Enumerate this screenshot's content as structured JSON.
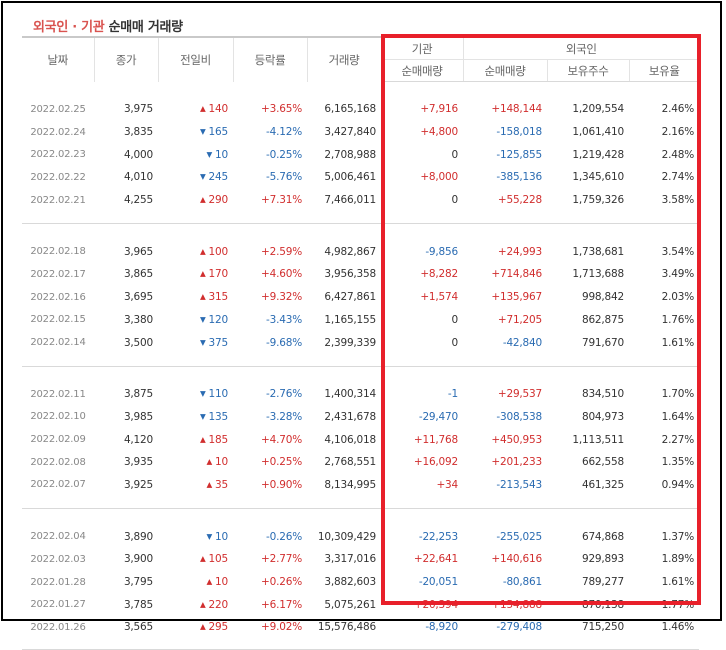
{
  "title": {
    "highlight": "외국인 · 기관",
    "rest": " 순매매 거래량"
  },
  "colors": {
    "up": "#d12e2e",
    "down": "#2a6bb2",
    "box": "#e8202a"
  },
  "headers": {
    "date": "날짜",
    "close": "종가",
    "change": "전일비",
    "rate": "등락률",
    "volume": "거래량",
    "inst_group": "기관",
    "foreign_group": "외국인",
    "inst_net": "순매매량",
    "foreign_net": "순매매량",
    "foreign_hold": "보유주수",
    "foreign_ratio": "보유율"
  },
  "groups": [
    [
      {
        "date": "2022.02.25",
        "close": "3,975",
        "dir": "up",
        "change": "140",
        "rate": "+3.65%",
        "volume": "6,165,168",
        "inst": "+7,916",
        "foreign": "+148,144",
        "hold": "1,209,554",
        "ratio": "2.46%"
      },
      {
        "date": "2022.02.24",
        "close": "3,835",
        "dir": "down",
        "change": "165",
        "rate": "-4.12%",
        "volume": "3,427,840",
        "inst": "+4,800",
        "foreign": "-158,018",
        "hold": "1,061,410",
        "ratio": "2.16%"
      },
      {
        "date": "2022.02.23",
        "close": "4,000",
        "dir": "down",
        "change": "10",
        "rate": "-0.25%",
        "volume": "2,708,988",
        "inst": "0",
        "foreign": "-125,855",
        "hold": "1,219,428",
        "ratio": "2.48%"
      },
      {
        "date": "2022.02.22",
        "close": "4,010",
        "dir": "down",
        "change": "245",
        "rate": "-5.76%",
        "volume": "5,006,461",
        "inst": "+8,000",
        "foreign": "-385,136",
        "hold": "1,345,610",
        "ratio": "2.74%"
      },
      {
        "date": "2022.02.21",
        "close": "4,255",
        "dir": "up",
        "change": "290",
        "rate": "+7.31%",
        "volume": "7,466,011",
        "inst": "0",
        "foreign": "+55,228",
        "hold": "1,759,326",
        "ratio": "3.58%"
      }
    ],
    [
      {
        "date": "2022.02.18",
        "close": "3,965",
        "dir": "up",
        "change": "100",
        "rate": "+2.59%",
        "volume": "4,982,867",
        "inst": "-9,856",
        "foreign": "+24,993",
        "hold": "1,738,681",
        "ratio": "3.54%"
      },
      {
        "date": "2022.02.17",
        "close": "3,865",
        "dir": "up",
        "change": "170",
        "rate": "+4.60%",
        "volume": "3,956,358",
        "inst": "+8,282",
        "foreign": "+714,846",
        "hold": "1,713,688",
        "ratio": "3.49%"
      },
      {
        "date": "2022.02.16",
        "close": "3,695",
        "dir": "up",
        "change": "315",
        "rate": "+9.32%",
        "volume": "6,427,861",
        "inst": "+1,574",
        "foreign": "+135,967",
        "hold": "998,842",
        "ratio": "2.03%"
      },
      {
        "date": "2022.02.15",
        "close": "3,380",
        "dir": "down",
        "change": "120",
        "rate": "-3.43%",
        "volume": "1,165,155",
        "inst": "0",
        "foreign": "+71,205",
        "hold": "862,875",
        "ratio": "1.76%"
      },
      {
        "date": "2022.02.14",
        "close": "3,500",
        "dir": "down",
        "change": "375",
        "rate": "-9.68%",
        "volume": "2,399,339",
        "inst": "0",
        "foreign": "-42,840",
        "hold": "791,670",
        "ratio": "1.61%"
      }
    ],
    [
      {
        "date": "2022.02.11",
        "close": "3,875",
        "dir": "down",
        "change": "110",
        "rate": "-2.76%",
        "volume": "1,400,314",
        "inst": "-1",
        "foreign": "+29,537",
        "hold": "834,510",
        "ratio": "1.70%"
      },
      {
        "date": "2022.02.10",
        "close": "3,985",
        "dir": "down",
        "change": "135",
        "rate": "-3.28%",
        "volume": "2,431,678",
        "inst": "-29,470",
        "foreign": "-308,538",
        "hold": "804,973",
        "ratio": "1.64%"
      },
      {
        "date": "2022.02.09",
        "close": "4,120",
        "dir": "up",
        "change": "185",
        "rate": "+4.70%",
        "volume": "4,106,018",
        "inst": "+11,768",
        "foreign": "+450,953",
        "hold": "1,113,511",
        "ratio": "2.27%"
      },
      {
        "date": "2022.02.08",
        "close": "3,935",
        "dir": "up",
        "change": "10",
        "rate": "+0.25%",
        "volume": "2,768,551",
        "inst": "+16,092",
        "foreign": "+201,233",
        "hold": "662,558",
        "ratio": "1.35%"
      },
      {
        "date": "2022.02.07",
        "close": "3,925",
        "dir": "up",
        "change": "35",
        "rate": "+0.90%",
        "volume": "8,134,995",
        "inst": "+34",
        "foreign": "-213,543",
        "hold": "461,325",
        "ratio": "0.94%"
      }
    ],
    [
      {
        "date": "2022.02.04",
        "close": "3,890",
        "dir": "down",
        "change": "10",
        "rate": "-0.26%",
        "volume": "10,309,429",
        "inst": "-22,253",
        "foreign": "-255,025",
        "hold": "674,868",
        "ratio": "1.37%"
      },
      {
        "date": "2022.02.03",
        "close": "3,900",
        "dir": "up",
        "change": "105",
        "rate": "+2.77%",
        "volume": "3,317,016",
        "inst": "+22,641",
        "foreign": "+140,616",
        "hold": "929,893",
        "ratio": "1.89%"
      },
      {
        "date": "2022.01.28",
        "close": "3,795",
        "dir": "up",
        "change": "10",
        "rate": "+0.26%",
        "volume": "3,882,603",
        "inst": "-20,051",
        "foreign": "-80,861",
        "hold": "789,277",
        "ratio": "1.61%"
      },
      {
        "date": "2022.01.27",
        "close": "3,785",
        "dir": "up",
        "change": "220",
        "rate": "+6.17%",
        "volume": "5,075,261",
        "inst": "+20,394",
        "foreign": "+154,888",
        "hold": "870,138",
        "ratio": "1.77%"
      },
      {
        "date": "2022.01.26",
        "close": "3,565",
        "dir": "up",
        "change": "295",
        "rate": "+9.02%",
        "volume": "15,576,486",
        "inst": "-8,920",
        "foreign": "-279,408",
        "hold": "715,250",
        "ratio": "1.46%"
      }
    ]
  ]
}
